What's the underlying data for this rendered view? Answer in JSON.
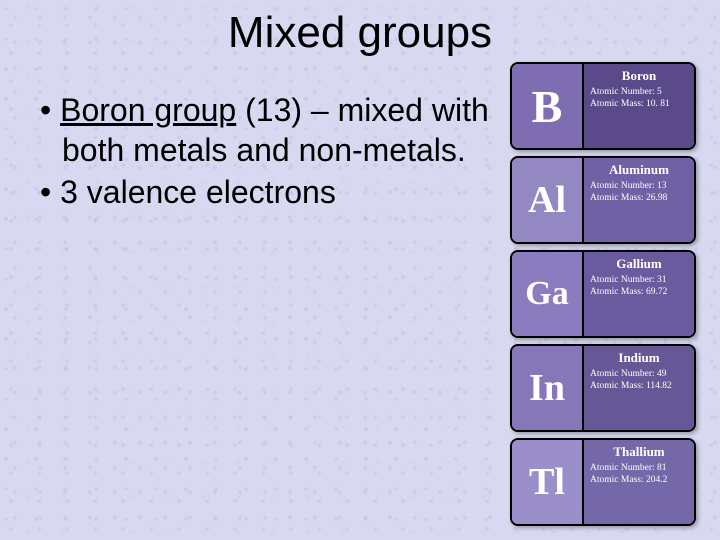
{
  "title": "Mixed groups",
  "bullets": [
    {
      "prefix": "• ",
      "underlined": "Boron group",
      "rest": " (13) – mixed with both metals and non-metals."
    },
    {
      "prefix": "• ",
      "underlined": "",
      "rest": "3 valence electrons"
    }
  ],
  "cards": [
    {
      "symbol": "B",
      "name": "Boron",
      "atomic_number": "5",
      "atomic_mass": "10. 81",
      "sym_bg": "#7e6db0",
      "info_bg": "#5a4a8a",
      "sym_size": "46px"
    },
    {
      "symbol": "Al",
      "name": "Aluminum",
      "atomic_number": "13",
      "atomic_mass": "26.98",
      "sym_bg": "#9488c2",
      "info_bg": "#6f61a3",
      "sym_size": "38px"
    },
    {
      "symbol": "Ga",
      "name": "Gallium",
      "atomic_number": "31",
      "atomic_mass": "69.72",
      "sym_bg": "#8b7cc0",
      "info_bg": "#6a5a9e",
      "sym_size": "34px"
    },
    {
      "symbol": "In",
      "name": "Indium",
      "atomic_number": "49",
      "atomic_mass": "114.82",
      "sym_bg": "#8678b8",
      "info_bg": "#665896",
      "sym_size": "38px"
    },
    {
      "symbol": "Tl",
      "name": "Thallium",
      "atomic_number": "81",
      "atomic_mass": "204.2",
      "sym_bg": "#9a8ecb",
      "info_bg": "#7468a8",
      "sym_size": "38px"
    }
  ],
  "labels": {
    "atomic_number": "Atomic Number:",
    "atomic_mass": "Atomic Mass:"
  }
}
